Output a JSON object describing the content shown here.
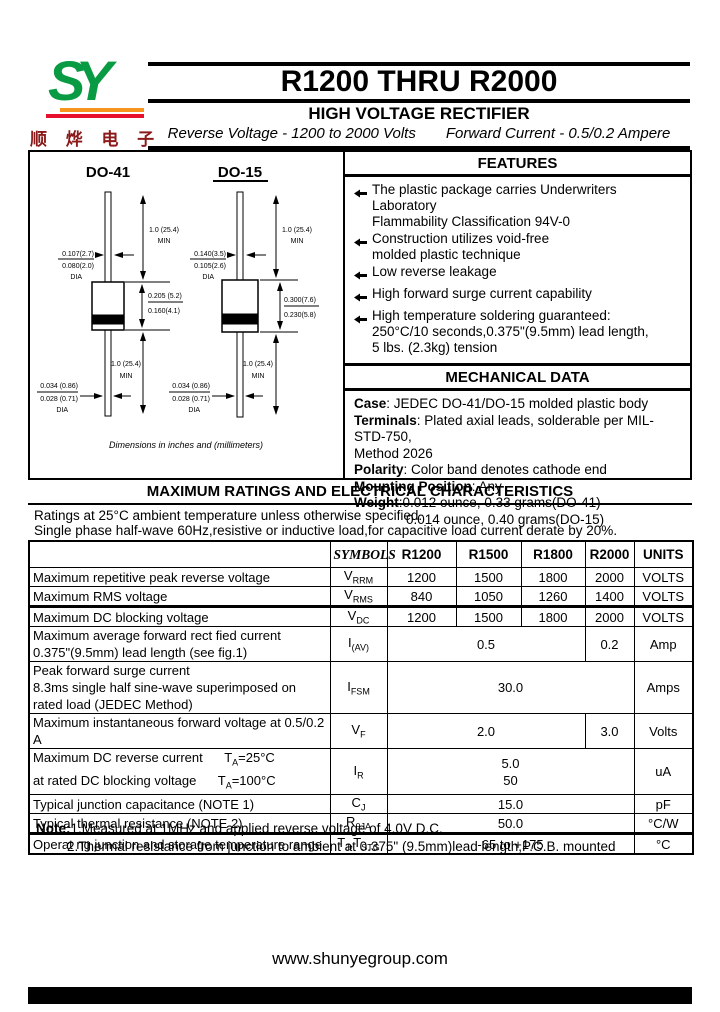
{
  "logo": {
    "text": "SY",
    "chinese": "顺 烨 电 子"
  },
  "header": {
    "part_range": "R1200 THRU R2000",
    "subtitle": "HIGH VOLTAGE RECTIFIER",
    "tagline_left": "Reverse Voltage - 1200 to 2000 Volts",
    "tagline_right": "Forward Current - 0.5/0.2 Ampere"
  },
  "packages": {
    "note": "Dimensions in inches and (millimeters)",
    "do41": {
      "title": "DO-41",
      "lead_top": [
        "1.0 (25.4)",
        "MIN"
      ],
      "body_dia": [
        "0.107(2.7)",
        "0.080(2.0)",
        "DIA"
      ],
      "body_len": [
        "0.205 (5.2)",
        "0.160(4.1)"
      ],
      "lead_dia": [
        "0.034 (0.86)",
        "0.028 (0.71)",
        "DIA"
      ],
      "lead_bot": [
        "1.0 (25.4)",
        "MIN"
      ]
    },
    "do15": {
      "title": "DO-15",
      "lead_top": [
        "1.0 (25.4)",
        "MIN"
      ],
      "body_dia": [
        "0.140(3.5)",
        "0.105(2.6)",
        "DIA"
      ],
      "body_len": [
        "0.300(7.6)",
        "0.230(5.8)"
      ],
      "lead_dia": [
        "0.034 (0.86)",
        "0.028 (0.71)",
        "DIA"
      ],
      "lead_bot": [
        "1.0 (25.4)",
        "MIN"
      ]
    }
  },
  "features": {
    "title": "FEATURES",
    "items": [
      {
        "lines": [
          "The plastic package carries Underwriters Laboratory",
          "Flammability Classification 94V-0"
        ]
      },
      {
        "lines": [
          "Construction utilizes void-free",
          "molded plastic technique"
        ]
      },
      {
        "lines": [
          "Low reverse leakage"
        ]
      },
      {
        "lines": [
          "High forward surge current capability"
        ]
      },
      {
        "lines": [
          "High temperature soldering guaranteed:",
          "250°C/10 seconds,0.375\"(9.5mm) lead length,",
          "5 lbs. (2.3kg) tension"
        ]
      }
    ]
  },
  "mechanical": {
    "title": "MECHANICAL DATA",
    "rows": [
      {
        "label": "Case",
        "value": ": JEDEC DO-41/DO-15 molded plastic body",
        "indent": false
      },
      {
        "label": "Terminals",
        "value": ": Plated axial leads, solderable per MIL-STD-750,",
        "indent": false
      },
      {
        "label": "",
        "value": "Method 2026",
        "indent": false
      },
      {
        "label": "Polarity",
        "value": ": Color band denotes cathode end",
        "indent": false
      },
      {
        "label": "Mounting Position",
        "value": ": Any",
        "indent": false
      },
      {
        "label": "Weight",
        "value": ":0.012 ounce, 0.33 grams(DO-41)",
        "indent": false
      },
      {
        "label": "",
        "value": "0.014 ounce, 0.40 grams(DO-15)",
        "indent": true
      }
    ]
  },
  "ratings": {
    "title": "MAXIMUM RATINGS AND ELECTRICAL CHARACTERISTICS",
    "intro": [
      "Ratings at 25°C ambient temperature unless otherwise specified.",
      "Single phase half-wave 60Hz,resistive or inductive load,for capacitive load current derate by 20%."
    ],
    "table": {
      "symbols_header": "SYMBOLS",
      "part_headers": [
        "R1200",
        "R1500",
        "R1800",
        "R2000"
      ],
      "units_header": "UNITS",
      "rows": [
        {
          "desc": [
            [
              {
                "t": "Maximum repetitive peak reverse voltage"
              }
            ]
          ],
          "sym": [
            {
              "t": "V"
            },
            {
              "s": "RRM"
            }
          ],
          "values": [
            {
              "span": 1,
              "text": [
                "1200"
              ]
            },
            {
              "span": 1,
              "text": [
                "1500"
              ]
            },
            {
              "span": 1,
              "text": [
                "1800"
              ]
            },
            {
              "span": 1,
              "text": [
                "2000"
              ]
            }
          ],
          "unit": "VOLTS",
          "thickTop": false
        },
        {
          "desc": [
            [
              {
                "t": "Maximum RMS voltage"
              }
            ]
          ],
          "sym": [
            {
              "t": "V"
            },
            {
              "s": "RMS"
            }
          ],
          "values": [
            {
              "span": 1,
              "text": [
                "840"
              ]
            },
            {
              "span": 1,
              "text": [
                "1050"
              ]
            },
            {
              "span": 1,
              "text": [
                "1260"
              ]
            },
            {
              "span": 1,
              "text": [
                "1400"
              ]
            }
          ],
          "unit": "VOLTS",
          "thickTop": false
        },
        {
          "desc": [
            [
              {
                "t": "Maximum DC blocking voltage"
              }
            ]
          ],
          "sym": [
            {
              "t": "V"
            },
            {
              "s": "DC"
            }
          ],
          "values": [
            {
              "span": 1,
              "text": [
                "1200"
              ]
            },
            {
              "span": 1,
              "text": [
                "1500"
              ]
            },
            {
              "span": 1,
              "text": [
                "1800"
              ]
            },
            {
              "span": 1,
              "text": [
                "2000"
              ]
            }
          ],
          "unit": "VOLTS",
          "thickTop": true
        },
        {
          "desc": [
            [
              {
                "t": "Maximum average forward rect fied current"
              }
            ],
            [
              {
                "t": "0.375\"(9.5mm) lead length (see fig.1)"
              }
            ]
          ],
          "sym": [
            {
              "t": "I"
            },
            {
              "s": "(AV)"
            }
          ],
          "values": [
            {
              "span": 3,
              "text": [
                "0.5"
              ]
            },
            {
              "span": 1,
              "text": [
                "0.2"
              ]
            }
          ],
          "unit": "Amp",
          "thickTop": false
        },
        {
          "desc": [
            [
              {
                "t": "Peak forward surge current"
              }
            ],
            [
              {
                "t": "8.3ms single half sine-wave superimposed on"
              }
            ],
            [
              {
                "t": "rated load (JEDEC Method)"
              }
            ]
          ],
          "sym": [
            {
              "t": "I"
            },
            {
              "s": "FSM"
            }
          ],
          "values": [
            {
              "span": 4,
              "text": [
                "30.0"
              ]
            }
          ],
          "unit": "Amps",
          "thickTop": false
        },
        {
          "desc": [
            [
              {
                "t": "Maximum instantaneous forward voltage at 0.5/0.2 A"
              }
            ]
          ],
          "sym": [
            {
              "t": "V"
            },
            {
              "s": "F"
            }
          ],
          "values": [
            {
              "span": 3,
              "text": [
                "2.0"
              ]
            },
            {
              "span": 1,
              "text": [
                "3.0"
              ]
            }
          ],
          "unit": "Volts",
          "thickTop": false
        },
        {
          "desc": [
            [
              {
                "t": "Maximum DC reverse current      T"
              },
              {
                "s": "A"
              },
              {
                "t": "=25°C"
              }
            ],
            [
              {
                "t": "at rated DC blocking voltage      T"
              },
              {
                "s": "A"
              },
              {
                "t": "=100°C"
              }
            ]
          ],
          "sym": [
            {
              "t": "I"
            },
            {
              "s": "R"
            }
          ],
          "values": [
            {
              "span": 4,
              "text": [
                "5.0",
                "50"
              ]
            }
          ],
          "unit": "uA",
          "thickTop": false
        },
        {
          "desc": [
            [
              {
                "t": "Typical junction capacitance (NOTE 1)"
              }
            ]
          ],
          "sym": [
            {
              "t": "C"
            },
            {
              "s": "J"
            }
          ],
          "values": [
            {
              "span": 4,
              "text": [
                "15.0"
              ]
            }
          ],
          "unit": "pF",
          "thickTop": false
        },
        {
          "desc": [
            [
              {
                "t": "Typical thermal resistance (NOTE 2)"
              }
            ]
          ],
          "sym": [
            {
              "t": "R"
            },
            {
              "s": "θJA"
            }
          ],
          "values": [
            {
              "span": 4,
              "text": [
                "50.0"
              ]
            }
          ],
          "unit": "°C/W",
          "thickTop": false
        },
        {
          "desc": [
            [
              {
                "t": "Operat ng junction and storage temperature range"
              }
            ]
          ],
          "sym": [
            {
              "t": "T"
            },
            {
              "s": "J"
            },
            {
              "t": ",T"
            },
            {
              "s": "STG"
            }
          ],
          "values": [
            {
              "span": 4,
              "text": [
                "-65 to +175"
              ]
            }
          ],
          "unit": "°C",
          "thickTop": true
        }
      ]
    },
    "notes": {
      "label": "Note:",
      "items": [
        "1.Measured at 1MHz and applied reverse voltage of 4.0V D.C.",
        "2.Thermal resistance from junction to ambient  at 0.375\" (9.5mm)lead length,P.C.B. mounted"
      ]
    }
  },
  "footer": {
    "url": "www.shunyegroup.com"
  }
}
